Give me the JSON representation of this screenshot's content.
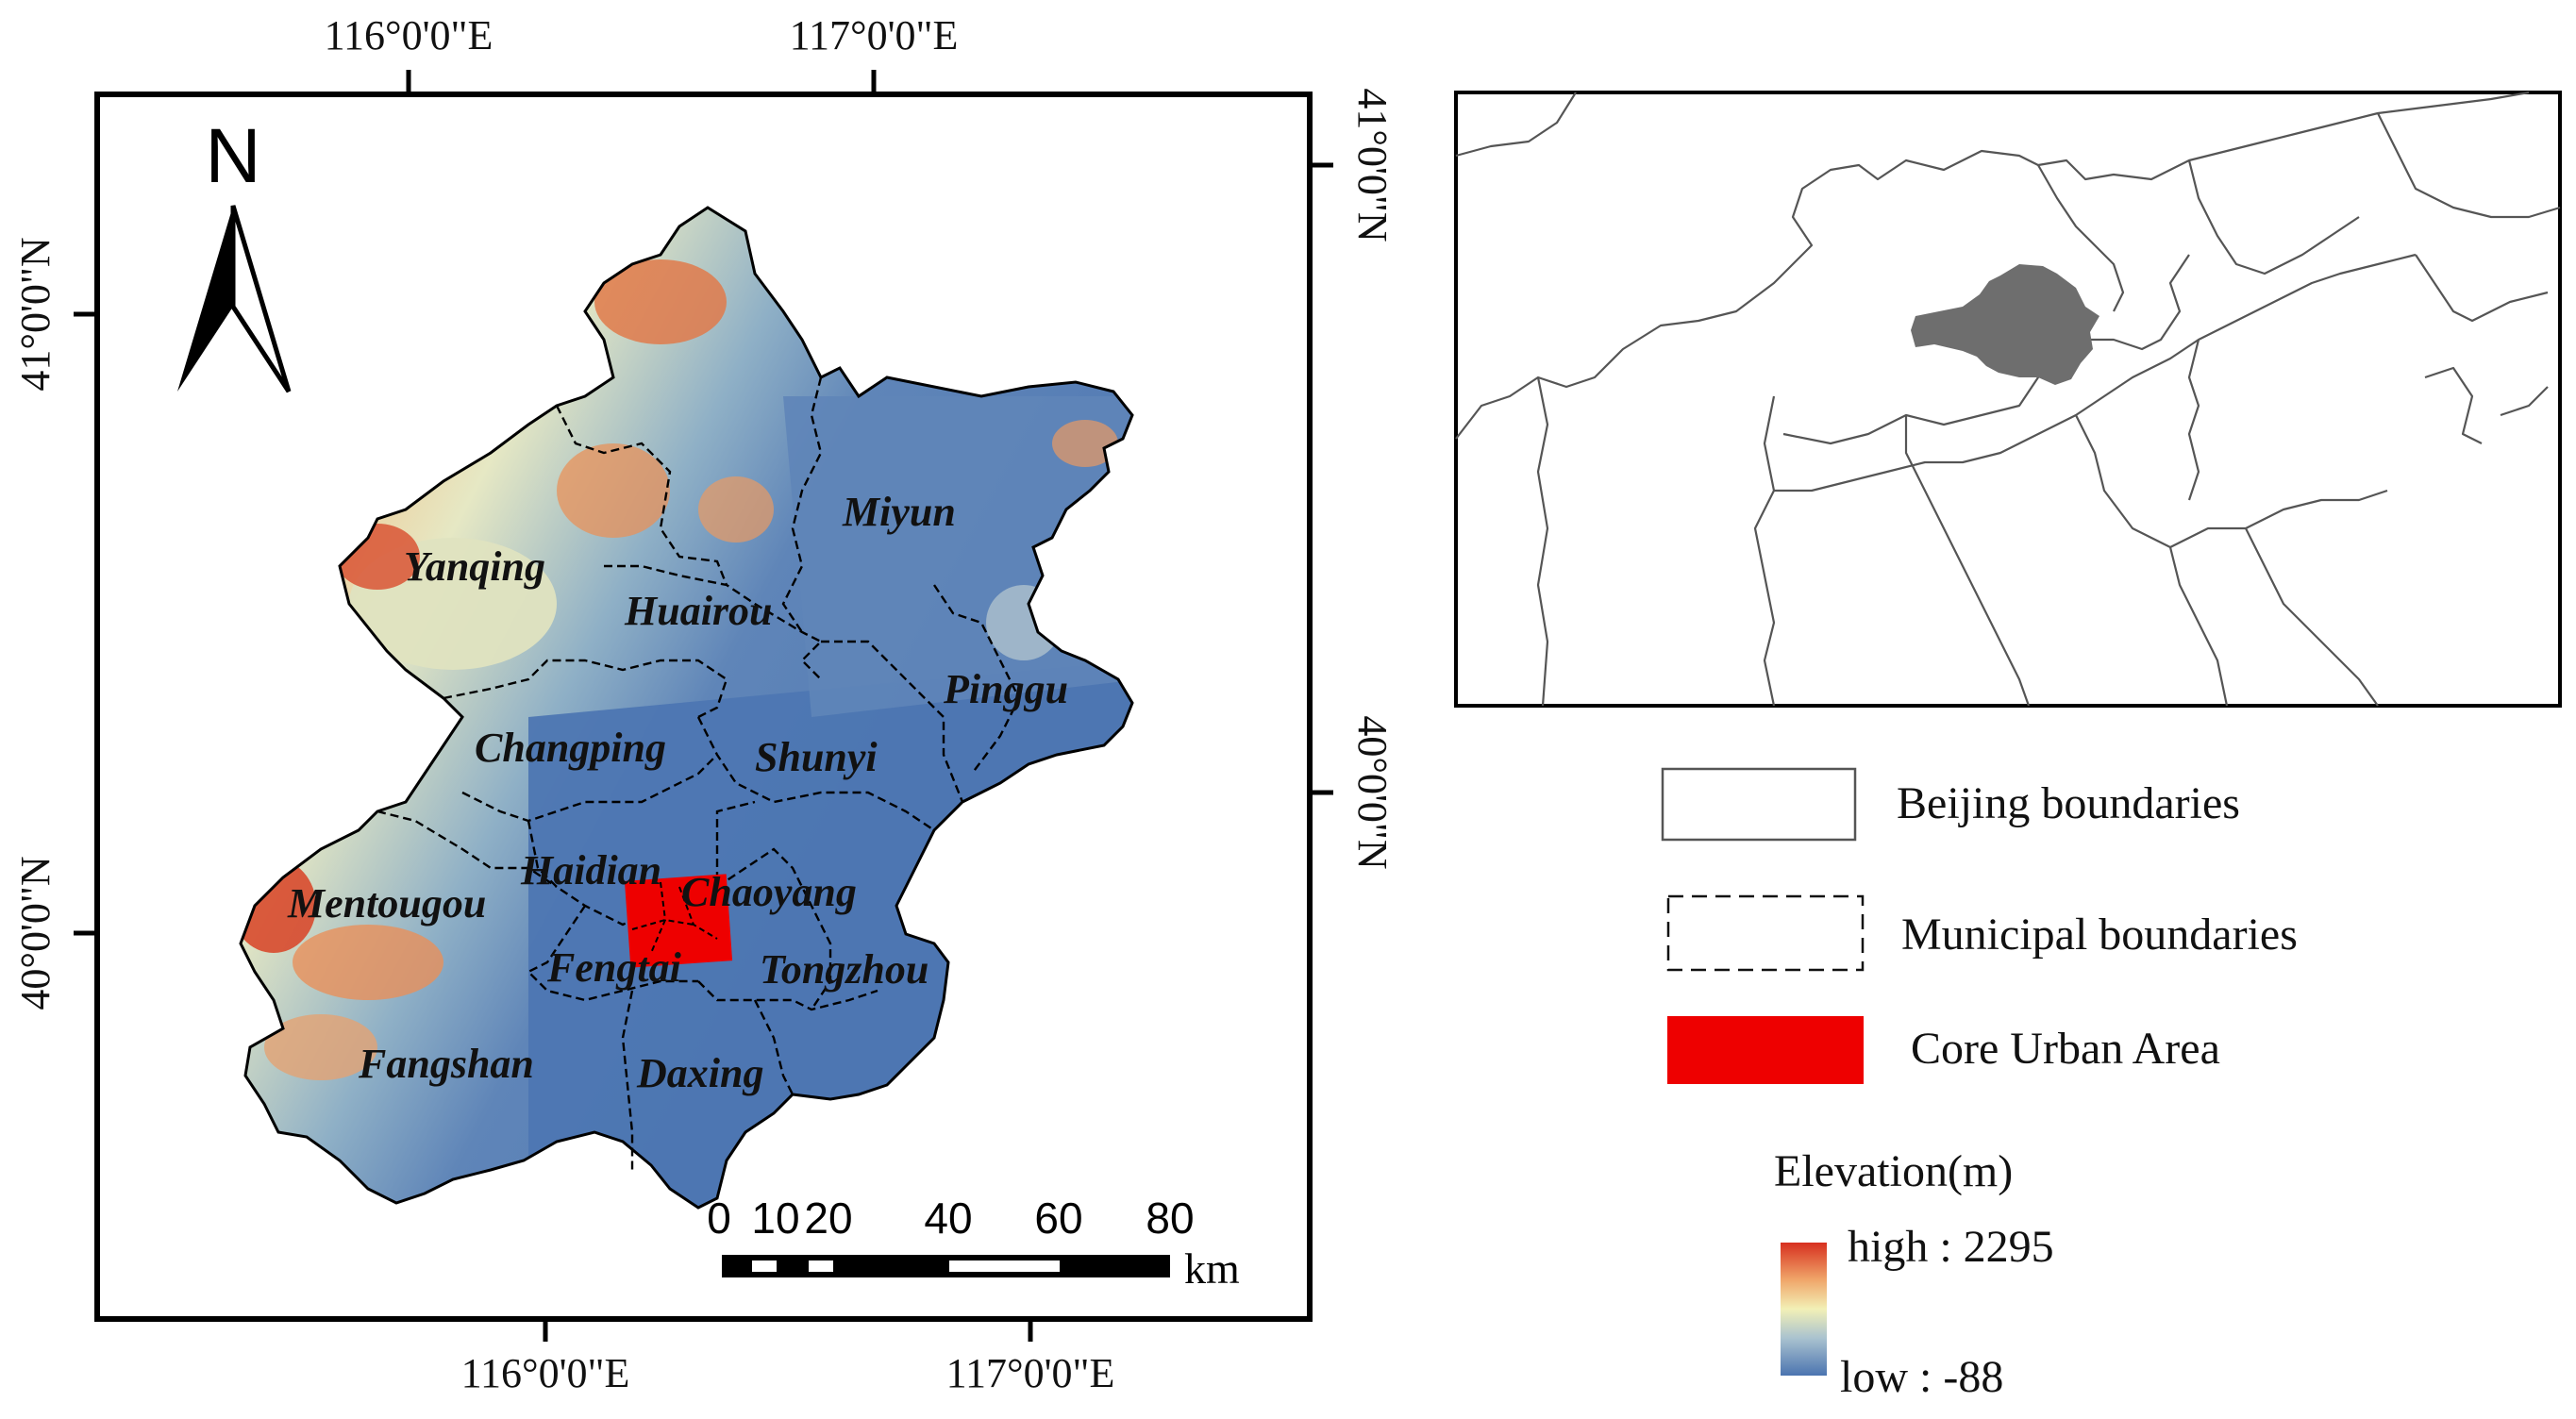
{
  "main_map": {
    "top_longitudes": [
      "116°0'0\"E",
      "117°0'0\"E"
    ],
    "bottom_longitudes": [
      "116°0'0\"E",
      "117°0'0\"E"
    ],
    "left_latitudes": [
      "41°0'0\"N",
      "40°0'0\"N"
    ],
    "right_latitudes": [
      "41°0'0\"N",
      "40°0'0\"N"
    ],
    "north_arrow_label": "N",
    "districts": [
      "Yanqing",
      "Huairou",
      "Miyun",
      "Pinggu",
      "Changping",
      "Shunyi",
      "Haidian",
      "Chaoyang",
      "Mentougou",
      "Fengtai",
      "Tongzhou",
      "Fangshan",
      "Daxing"
    ],
    "scale_bar": {
      "tick_labels": [
        "0",
        "10",
        "20",
        "40",
        "60",
        "80"
      ],
      "unit": "km"
    }
  },
  "legend": {
    "items": [
      {
        "label": "Beijing boundaries"
      },
      {
        "label": "Municipal boundaries"
      },
      {
        "label": "Core Urban Area"
      }
    ],
    "elevation": {
      "title": "Elevation(m)",
      "high_label": "high : 2295",
      "low_label": "low : -88"
    }
  },
  "colors": {
    "core_urban": "#ee0000",
    "elevation_high": "#d7301f",
    "elevation_mid": "#f2f0b6",
    "elevation_low": "#4b74b0",
    "beijing_inset": "#6e6e6e"
  }
}
